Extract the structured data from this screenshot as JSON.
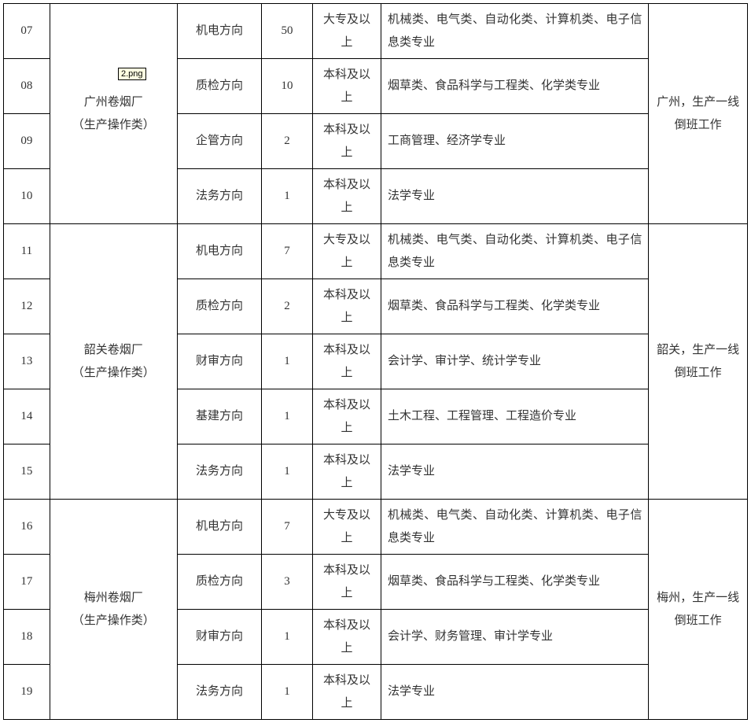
{
  "tooltip": "2.png",
  "groups": [
    {
      "factory": "广州卷烟厂\n（生产操作类）",
      "note": "广州，生产一线倒班工作",
      "rows": [
        {
          "id": "07",
          "direction": "机电方向",
          "count": "50",
          "edu": "大专及以上",
          "major": "机械类、电气类、自动化类、计算机类、电子信息类专业"
        },
        {
          "id": "08",
          "direction": "质检方向",
          "count": "10",
          "edu": "本科及以上",
          "major": "烟草类、食品科学与工程类、化学类专业"
        },
        {
          "id": "09",
          "direction": "企管方向",
          "count": "2",
          "edu": "本科及以上",
          "major": "工商管理、经济学专业"
        },
        {
          "id": "10",
          "direction": "法务方向",
          "count": "1",
          "edu": "本科及以上",
          "major": "法学专业"
        }
      ]
    },
    {
      "factory": "韶关卷烟厂\n（生产操作类）",
      "note": "韶关，生产一线倒班工作",
      "rows": [
        {
          "id": "11",
          "direction": "机电方向",
          "count": "7",
          "edu": "大专及以上",
          "major": "机械类、电气类、自动化类、计算机类、电子信息类专业"
        },
        {
          "id": "12",
          "direction": "质检方向",
          "count": "2",
          "edu": "本科及以上",
          "major": "烟草类、食品科学与工程类、化学类专业"
        },
        {
          "id": "13",
          "direction": "财审方向",
          "count": "1",
          "edu": "本科及以上",
          "major": "会计学、审计学、统计学专业"
        },
        {
          "id": "14",
          "direction": "基建方向",
          "count": "1",
          "edu": "本科及以上",
          "major": "土木工程、工程管理、工程造价专业"
        },
        {
          "id": "15",
          "direction": "法务方向",
          "count": "1",
          "edu": "本科及以上",
          "major": "法学专业"
        }
      ]
    },
    {
      "factory": "梅州卷烟厂\n（生产操作类）",
      "note": "梅州，生产一线倒班工作",
      "rows": [
        {
          "id": "16",
          "direction": "机电方向",
          "count": "7",
          "edu": "大专及以上",
          "major": "机械类、电气类、自动化类、计算机类、电子信息类专业"
        },
        {
          "id": "17",
          "direction": "质检方向",
          "count": "3",
          "edu": "本科及以上",
          "major": "烟草类、食品科学与工程类、化学类专业"
        },
        {
          "id": "18",
          "direction": "财审方向",
          "count": "1",
          "edu": "本科及以上",
          "major": "会计学、财务管理、审计学专业"
        },
        {
          "id": "19",
          "direction": "法务方向",
          "count": "1",
          "edu": "本科及以上",
          "major": "法学专业"
        }
      ]
    }
  ]
}
